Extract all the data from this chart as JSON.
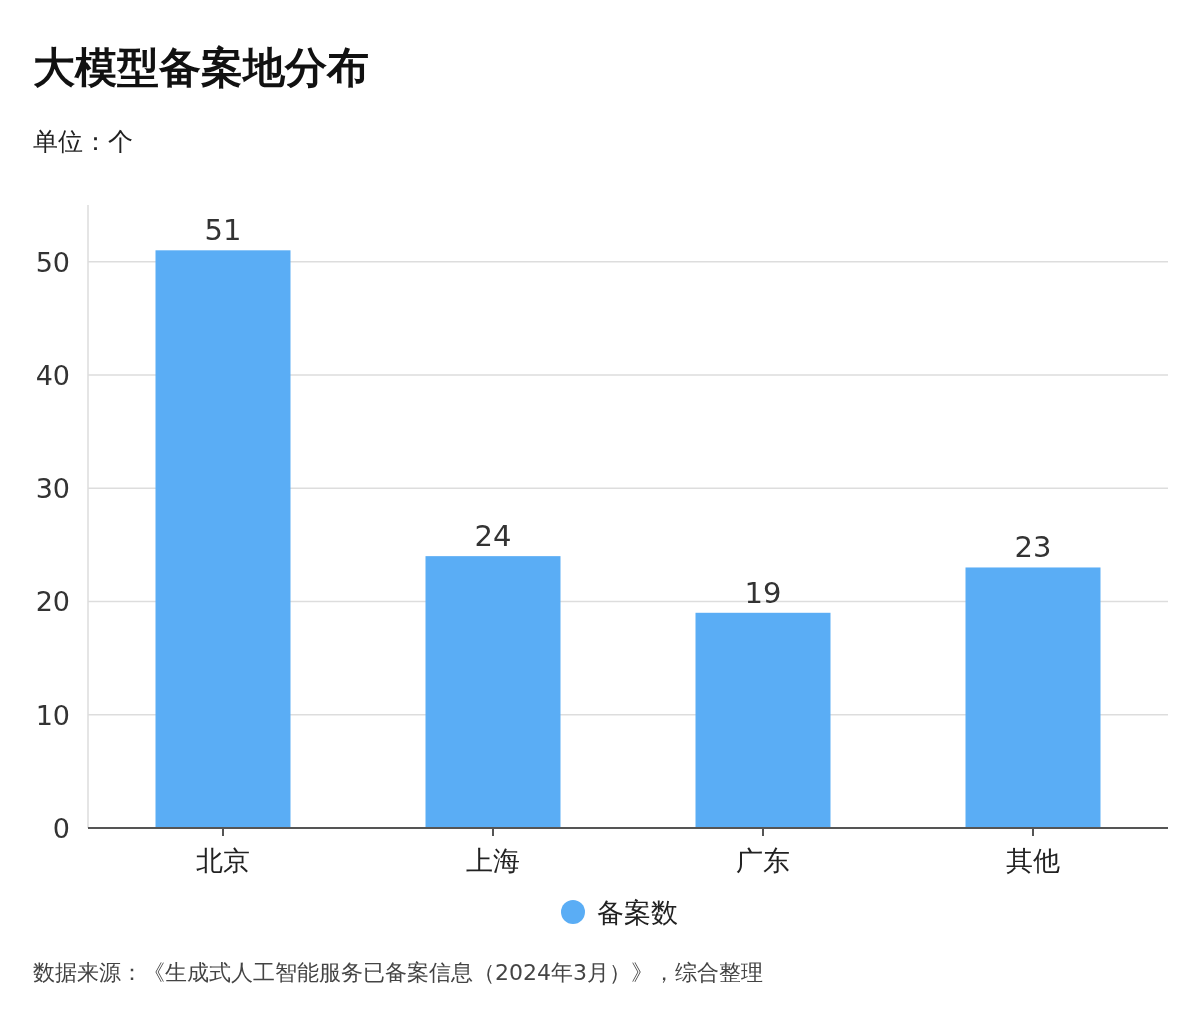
{
  "chart_data": {
    "type": "bar",
    "title": "大模型备案地分布",
    "subtitle": "单位：个",
    "categories": [
      "北京",
      "上海",
      "广东",
      "其他"
    ],
    "series": [
      {
        "name": "备案数",
        "color": "#5aadf5",
        "values": [
          51,
          24,
          19,
          23
        ]
      }
    ],
    "ylim": [
      0,
      55
    ],
    "yticks": [
      0,
      10,
      20,
      30,
      40,
      50
    ],
    "grid": "y",
    "legend": "bottom",
    "data_labels": true,
    "annotations": [
      "数据来源：《生成式人工智能服务已备案信息（2024年3月）》，综合整理"
    ]
  }
}
